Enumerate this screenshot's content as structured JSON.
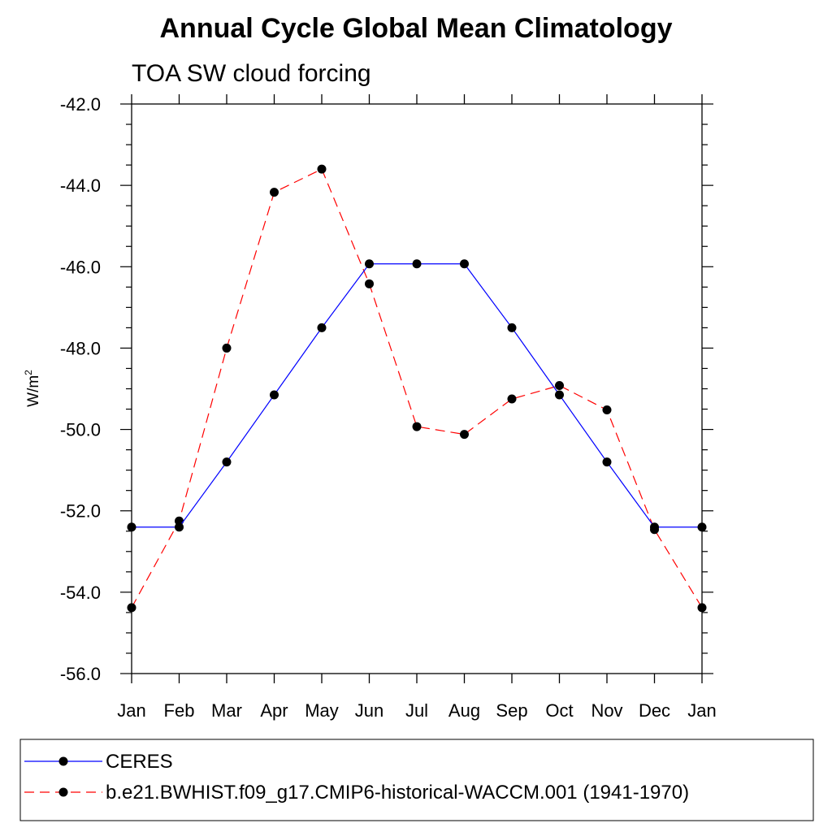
{
  "chart_data": {
    "type": "line",
    "title": "Annual Cycle Global Mean Climatology",
    "subtitle": "TOA SW cloud forcing",
    "ylabel_base": "W/m",
    "ylabel_sup": "2",
    "xlabel": "",
    "categories": [
      "Jan",
      "Feb",
      "Mar",
      "Apr",
      "May",
      "Jun",
      "Jul",
      "Aug",
      "Sep",
      "Oct",
      "Nov",
      "Dec",
      "Jan"
    ],
    "ylim": [
      -56,
      -42
    ],
    "yticks": [
      "-42.0",
      "-44.0",
      "-46.0",
      "-48.0",
      "-50.0",
      "-52.0",
      "-54.0",
      "-56.0"
    ],
    "grid": false,
    "legend_position": "bottom",
    "series": [
      {
        "name": "CERES",
        "color": "#0000ff",
        "style": "solid",
        "marker": "filled-circle",
        "values": [
          -52.4,
          -52.4,
          -50.8,
          -49.15,
          -47.5,
          -45.93,
          -45.93,
          -45.93,
          -47.5,
          -49.15,
          -50.8,
          -52.4,
          -52.4
        ]
      },
      {
        "name": "b.e21.BWHIST.f09_g17.CMIP6-historical-WACCM.001 (1941-1970)",
        "color": "#ff0000",
        "style": "dashed",
        "marker": "filled-circle",
        "values": [
          -54.38,
          -52.25,
          -48.0,
          -44.17,
          -43.6,
          -46.42,
          -49.93,
          -50.12,
          -49.25,
          -48.92,
          -49.52,
          -52.46,
          -54.38
        ]
      }
    ]
  }
}
